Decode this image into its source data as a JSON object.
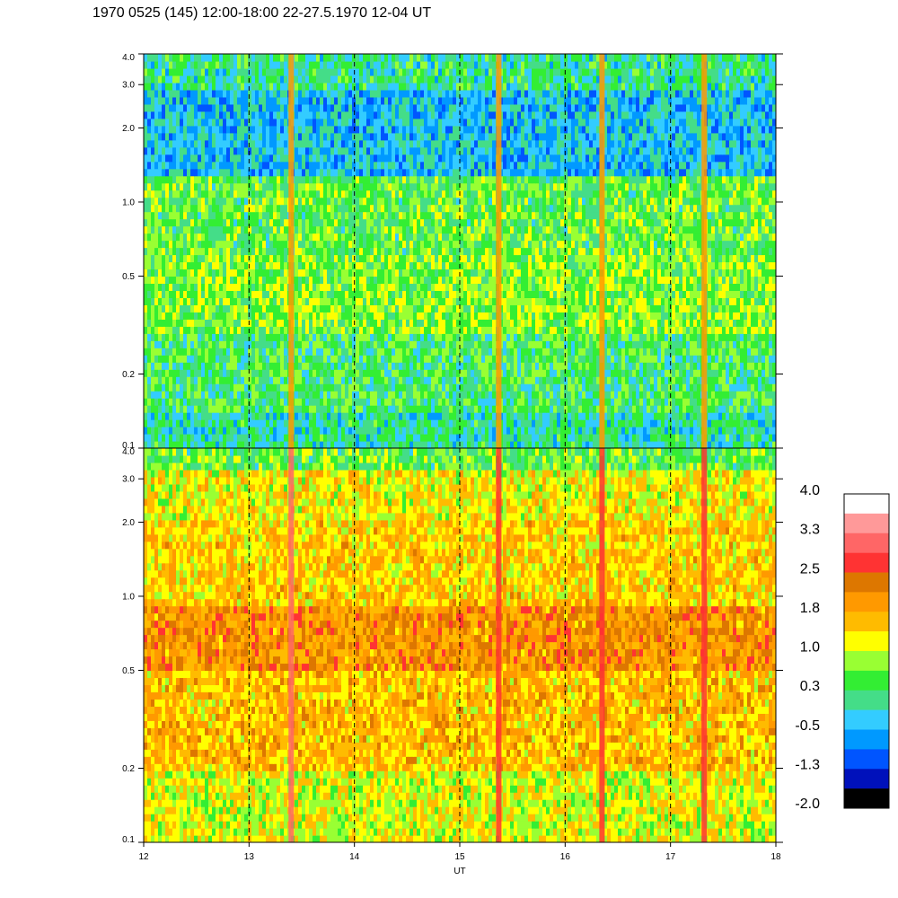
{
  "title": "1970 0525 (145) 12:00-18:00 22-27.5.1970  12-04 UT",
  "chart_data": [
    {
      "type": "heatmap",
      "panel": "top",
      "x_range": [
        12,
        18
      ],
      "y_scale": "log",
      "y_range": [
        0.1,
        4.0
      ],
      "y_ticks": [
        0.1,
        0.2,
        0.5,
        1.0,
        2.0,
        3.0,
        4.0
      ],
      "y_tick_labels": [
        "0.1",
        "0.2",
        "0.5",
        "1.0",
        "2.0",
        "3.0",
        "4.0"
      ],
      "vertical_dashed_lines_at": [
        13,
        14,
        15,
        16,
        17
      ],
      "bands": [
        {
          "y0": 0.1,
          "y1": 0.14,
          "level": 0.0
        },
        {
          "y0": 0.14,
          "y1": 0.3,
          "level": 0.3
        },
        {
          "y0": 0.3,
          "y1": 0.6,
          "level": 0.7
        },
        {
          "y0": 0.6,
          "y1": 1.3,
          "level": 0.5
        },
        {
          "y0": 1.3,
          "y1": 2.8,
          "level": -0.4
        },
        {
          "y0": 2.8,
          "y1": 4.0,
          "level": 0.1
        }
      ],
      "spikes": [
        {
          "x": 13.4,
          "level": 1.8
        },
        {
          "x": 15.37,
          "level": 2.0
        },
        {
          "x": 16.35,
          "level": 1.8
        },
        {
          "x": 17.32,
          "level": 1.8
        }
      ]
    },
    {
      "type": "heatmap",
      "panel": "bottom",
      "x_range": [
        12,
        18
      ],
      "x_ticks": [
        12,
        13,
        14,
        15,
        16,
        17,
        18
      ],
      "x_tick_labels": [
        "12",
        "13",
        "14",
        "15",
        "16",
        "17",
        "18"
      ],
      "xlabel": "UT",
      "y_scale": "log",
      "y_range": [
        0.1,
        4.0
      ],
      "y_ticks": [
        0.1,
        0.2,
        0.5,
        1.0,
        2.0,
        3.0,
        4.0
      ],
      "y_tick_labels": [
        "0.1",
        "0.2",
        "0.5",
        "1.0",
        "2.0",
        "3.0",
        "4.0"
      ],
      "vertical_dashed_lines_at": [
        13,
        14,
        15,
        16,
        17
      ],
      "bands": [
        {
          "y0": 0.1,
          "y1": 0.2,
          "level": 1.1
        },
        {
          "y0": 0.2,
          "y1": 0.5,
          "level": 1.6
        },
        {
          "y0": 0.5,
          "y1": 0.9,
          "level": 2.0
        },
        {
          "y0": 0.9,
          "y1": 2.0,
          "level": 1.5
        },
        {
          "y0": 2.0,
          "y1": 3.2,
          "level": 1.2
        },
        {
          "y0": 3.2,
          "y1": 4.0,
          "level": 0.5
        }
      ],
      "spikes": [
        {
          "x": 13.4,
          "level": 2.9
        },
        {
          "x": 15.37,
          "level": 2.6
        },
        {
          "x": 16.35,
          "level": 2.5
        },
        {
          "x": 17.32,
          "level": 2.5
        }
      ]
    }
  ],
  "colorbar": {
    "labels": [
      "4.0",
      "3.3",
      "2.5",
      "1.8",
      "1.0",
      "0.3",
      "-0.5",
      "-1.3",
      "-2.0"
    ],
    "range": [
      -2.0,
      4.0
    ],
    "colors_high_to_low": [
      "#ffffff",
      "#ff9999",
      "#ff6666",
      "#ff3333",
      "#dd7700",
      "#ff9900",
      "#ffbb00",
      "#ffff00",
      "#99ff33",
      "#33ee33",
      "#44dd88",
      "#33ccff",
      "#0099ff",
      "#0055ff",
      "#0011bb",
      "#000000"
    ]
  }
}
